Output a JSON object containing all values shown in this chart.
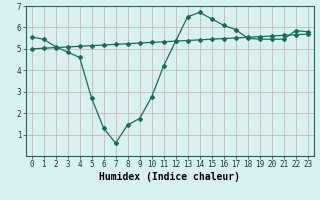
{
  "title": "",
  "xlabel": "Humidex (Indice chaleur)",
  "bg_color": "#d8f0f0",
  "grid_color": "#c8aaaa",
  "line_color": "#1a6b5a",
  "x_humidex": [
    0,
    1,
    2,
    3,
    4,
    5,
    6,
    7,
    8,
    9,
    10,
    11,
    12,
    13,
    14,
    15,
    16,
    17,
    18,
    19,
    20,
    21,
    22,
    23
  ],
  "y_humidex": [
    5.55,
    5.45,
    5.1,
    4.85,
    4.6,
    2.7,
    1.3,
    0.6,
    1.45,
    1.75,
    2.75,
    4.2,
    5.35,
    6.5,
    6.7,
    6.4,
    6.1,
    5.9,
    5.5,
    5.45,
    5.45,
    5.45,
    5.85,
    5.8
  ],
  "y_linear": [
    5.0,
    5.03,
    5.06,
    5.09,
    5.12,
    5.15,
    5.18,
    5.21,
    5.24,
    5.27,
    5.3,
    5.33,
    5.36,
    5.39,
    5.42,
    5.45,
    5.48,
    5.51,
    5.54,
    5.57,
    5.6,
    5.63,
    5.66,
    5.69
  ],
  "ylim": [
    0,
    7
  ],
  "xlim": [
    -0.5,
    23.5
  ],
  "yticks": [
    1,
    2,
    3,
    4,
    5,
    6,
    7
  ],
  "xticks": [
    0,
    1,
    2,
    3,
    4,
    5,
    6,
    7,
    8,
    9,
    10,
    11,
    12,
    13,
    14,
    15,
    16,
    17,
    18,
    19,
    20,
    21,
    22,
    23
  ],
  "tick_fontsize": 5.5,
  "label_fontsize": 7,
  "marker": "D",
  "marker_size": 2.0,
  "linewidth": 0.9
}
